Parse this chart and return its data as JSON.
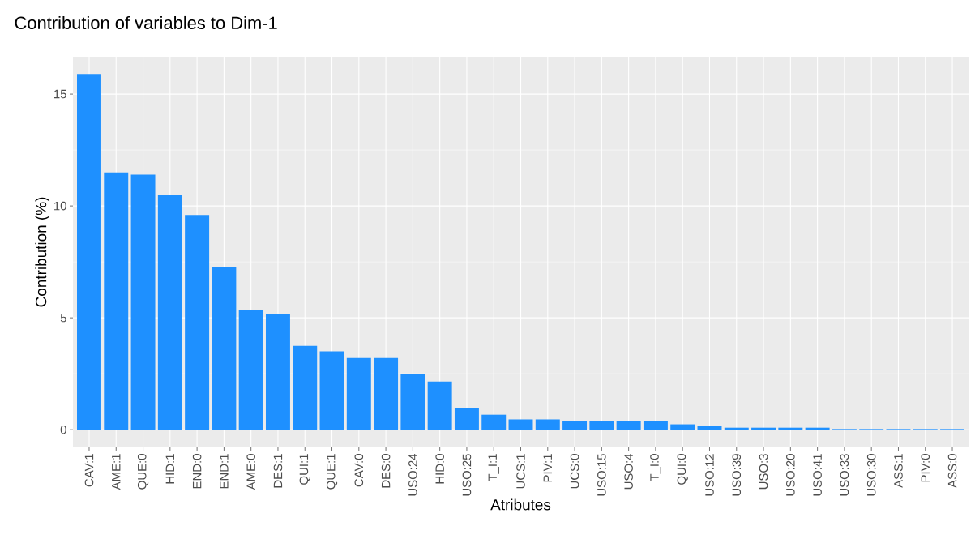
{
  "chart_data": {
    "type": "bar",
    "title": "Contribution of variables to Dim-1",
    "xlabel": "Atributes",
    "ylabel": "Contribution (%)",
    "categories": [
      "CAV:1",
      "AME:1",
      "QUE:0",
      "HID:1",
      "END:0",
      "END:1",
      "AME:0",
      "DES:1",
      "QUI:1",
      "QUE:1",
      "CAV:0",
      "DES:0",
      "USO:24",
      "HID:0",
      "USO:25",
      "T_I:1",
      "UCS:1",
      "PIV:1",
      "UCS:0",
      "USO:15",
      "USO:4",
      "T_I:0",
      "QUI:0",
      "USO:12",
      "USO:39",
      "USO:3",
      "USO:20",
      "USO:41",
      "USO:33",
      "USO:30",
      "ASS:1",
      "PIV:0",
      "ASS:0"
    ],
    "values": [
      15.9,
      11.5,
      11.4,
      10.5,
      9.6,
      7.25,
      5.35,
      5.15,
      3.75,
      3.5,
      3.2,
      3.2,
      2.5,
      2.15,
      0.98,
      0.67,
      0.46,
      0.46,
      0.39,
      0.39,
      0.39,
      0.39,
      0.24,
      0.16,
      0.09,
      0.09,
      0.09,
      0.09,
      0.03,
      0.03,
      0.03,
      0.03,
      0.03
    ],
    "color": "#1e90ff",
    "ylim": [
      -0.79,
      16.67
    ],
    "yticks": [
      0,
      5,
      10,
      15
    ],
    "grid": true
  }
}
